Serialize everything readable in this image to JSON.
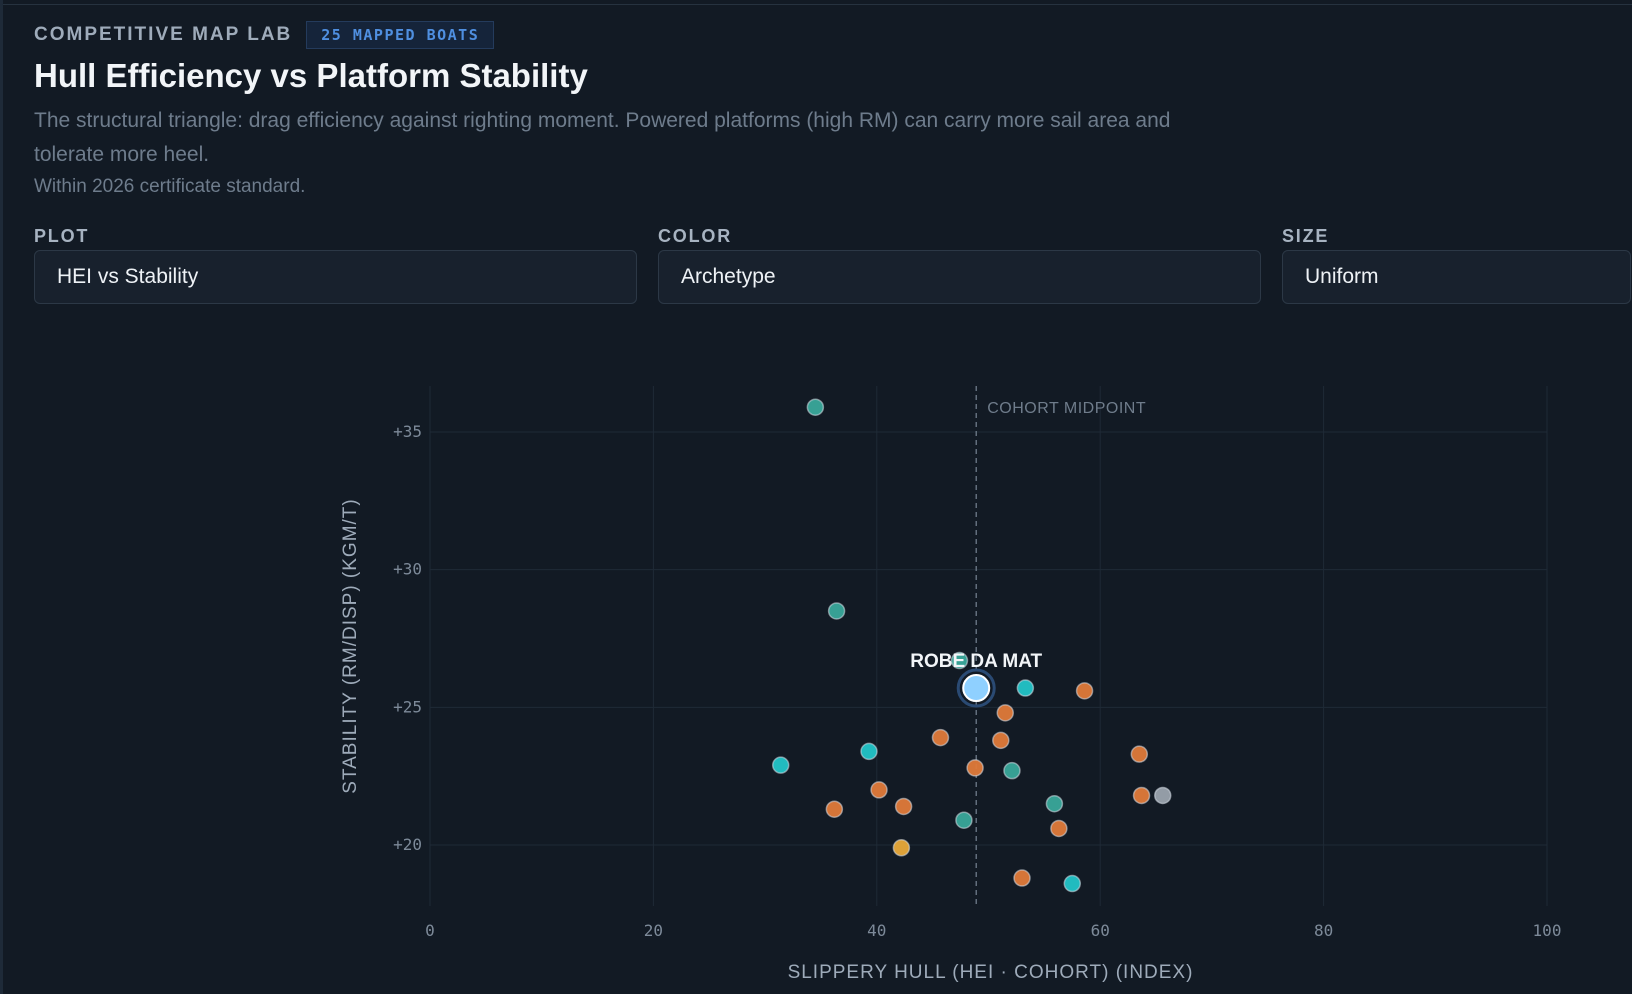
{
  "header": {
    "eyebrow": "COMPETITIVE MAP LAB",
    "badge": "25 MAPPED BOATS",
    "title": "Hull Efficiency vs Platform Stability",
    "subtitle": "The structural triangle: drag efficiency against righting moment. Powered platforms (high RM) can carry more sail area and tolerate more heel.",
    "note": "Within 2026 certificate standard."
  },
  "controls": [
    {
      "label": "PLOT",
      "value": "HEI vs Stability"
    },
    {
      "label": "COLOR",
      "value": "Archetype"
    },
    {
      "label": "SIZE",
      "value": "Uniform"
    }
  ],
  "colors": {
    "background": "#121a24",
    "grid": "#1f2a36",
    "teal": "#3aa89a",
    "cyan": "#22c4c8",
    "orange": "#e07a3a",
    "yellow": "#e8a93a",
    "gray": "#9aa3ad",
    "highlight": "#8fd0ff"
  },
  "chart_data": {
    "type": "scatter",
    "title": "",
    "xlabel": "SLIPPERY HULL (HEI · COHORT) (INDEX)",
    "ylabel": "STABILITY (RM/DISP) (KGM/T)",
    "xlim": [
      0,
      100
    ],
    "ylim": [
      18.3,
      36.6
    ],
    "xticks": [
      0,
      20,
      40,
      60,
      80,
      100
    ],
    "xtick_labels": [
      "0",
      "20",
      "40",
      "60",
      "80",
      "100"
    ],
    "yticks": [
      20,
      25,
      30,
      35
    ],
    "ytick_labels": [
      "+20",
      "+25",
      "+30",
      "+35"
    ],
    "grid": true,
    "reference_line": {
      "axis": "x",
      "value": 48.9,
      "label": "COHORT MIDPOINT"
    },
    "highlight": {
      "label": "ROBE DA MAT",
      "x": 48.9,
      "y": 25.7
    },
    "points": [
      {
        "x": 34.5,
        "y": 35.9,
        "group": "teal"
      },
      {
        "x": 36.4,
        "y": 28.5,
        "group": "teal"
      },
      {
        "x": 47.4,
        "y": 26.7,
        "group": "teal"
      },
      {
        "x": 53.3,
        "y": 25.7,
        "group": "cyan"
      },
      {
        "x": 58.6,
        "y": 25.6,
        "group": "orange"
      },
      {
        "x": 51.5,
        "y": 24.8,
        "group": "orange"
      },
      {
        "x": 45.7,
        "y": 23.9,
        "group": "orange"
      },
      {
        "x": 51.1,
        "y": 23.8,
        "group": "orange"
      },
      {
        "x": 39.3,
        "y": 23.4,
        "group": "cyan"
      },
      {
        "x": 63.5,
        "y": 23.3,
        "group": "orange"
      },
      {
        "x": 31.4,
        "y": 22.9,
        "group": "cyan"
      },
      {
        "x": 48.8,
        "y": 22.8,
        "group": "orange"
      },
      {
        "x": 52.1,
        "y": 22.7,
        "group": "teal"
      },
      {
        "x": 40.2,
        "y": 22.0,
        "group": "orange"
      },
      {
        "x": 63.7,
        "y": 21.8,
        "group": "orange"
      },
      {
        "x": 65.6,
        "y": 21.8,
        "group": "gray"
      },
      {
        "x": 55.9,
        "y": 21.5,
        "group": "teal"
      },
      {
        "x": 42.4,
        "y": 21.4,
        "group": "orange"
      },
      {
        "x": 36.2,
        "y": 21.3,
        "group": "orange"
      },
      {
        "x": 47.8,
        "y": 20.9,
        "group": "teal"
      },
      {
        "x": 56.3,
        "y": 20.6,
        "group": "orange"
      },
      {
        "x": 42.2,
        "y": 19.9,
        "group": "yellow"
      },
      {
        "x": 53.0,
        "y": 18.8,
        "group": "orange"
      },
      {
        "x": 57.5,
        "y": 18.6,
        "group": "cyan"
      }
    ]
  }
}
